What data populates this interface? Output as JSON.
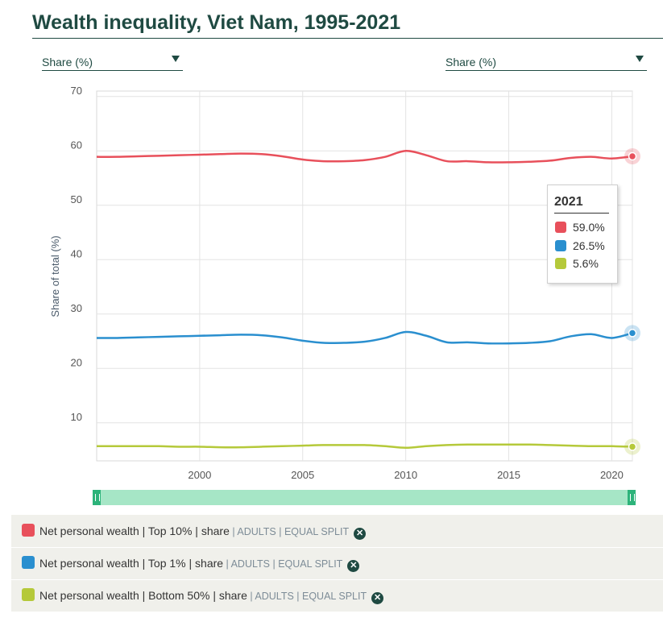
{
  "title": "Wealth inequality, Viet Nam, 1995-2021",
  "selectors": {
    "left": "Share (%)",
    "right": "Share (%)"
  },
  "colors": {
    "top10": "#e8505b",
    "top1": "#2a8fcf",
    "bottom50": "#b5c93a",
    "accent": "#1f4a42"
  },
  "chart_data": {
    "type": "line",
    "ylabel": "Share of total (%)",
    "ylim": [
      3,
      71
    ],
    "y_ticks": [
      10,
      20,
      30,
      40,
      50,
      60,
      70
    ],
    "xlim": [
      1995,
      2021
    ],
    "x_ticks": [
      2000,
      2005,
      2010,
      2015,
      2020
    ],
    "x": [
      1995,
      1996,
      1997,
      1998,
      1999,
      2000,
      2001,
      2002,
      2003,
      2004,
      2005,
      2006,
      2007,
      2008,
      2009,
      2010,
      2011,
      2012,
      2013,
      2014,
      2015,
      2016,
      2017,
      2018,
      2019,
      2020,
      2021
    ],
    "series": [
      {
        "name": "Top 10%",
        "color": "#e8505b",
        "values": [
          58.9,
          58.9,
          59.0,
          59.1,
          59.2,
          59.3,
          59.4,
          59.5,
          59.4,
          59.0,
          58.4,
          58.1,
          58.1,
          58.3,
          58.9,
          60.0,
          59.2,
          58.1,
          58.1,
          57.9,
          57.9,
          58.0,
          58.2,
          58.7,
          58.9,
          58.6,
          59.0
        ]
      },
      {
        "name": "Top 1%",
        "color": "#2a8fcf",
        "values": [
          25.6,
          25.6,
          25.7,
          25.8,
          25.9,
          26.0,
          26.1,
          26.2,
          26.1,
          25.7,
          25.1,
          24.7,
          24.7,
          24.9,
          25.6,
          26.7,
          26.0,
          24.8,
          24.8,
          24.6,
          24.6,
          24.7,
          25.0,
          25.9,
          26.3,
          25.6,
          26.5
        ]
      },
      {
        "name": "Bottom 50%",
        "color": "#b5c93a",
        "values": [
          5.7,
          5.7,
          5.7,
          5.7,
          5.6,
          5.6,
          5.5,
          5.5,
          5.6,
          5.7,
          5.8,
          5.9,
          5.9,
          5.9,
          5.7,
          5.4,
          5.7,
          5.9,
          6.0,
          6.0,
          6.0,
          6.0,
          5.9,
          5.8,
          5.7,
          5.7,
          5.6
        ]
      }
    ],
    "tooltip": {
      "year": "2021",
      "values": [
        "59.0%",
        "26.5%",
        "5.6%"
      ]
    }
  },
  "legend": [
    {
      "indicator": "Net personal wealth",
      "percentile": "Top 10%",
      "type": "share",
      "population": "ADULTS",
      "split": "EQUAL SPLIT"
    },
    {
      "indicator": "Net personal wealth",
      "percentile": "Top 1%",
      "type": "share",
      "population": "ADULTS",
      "split": "EQUAL SPLIT"
    },
    {
      "indicator": "Net personal wealth",
      "percentile": "Bottom 50%",
      "type": "share",
      "population": "ADULTS",
      "split": "EQUAL SPLIT"
    }
  ]
}
